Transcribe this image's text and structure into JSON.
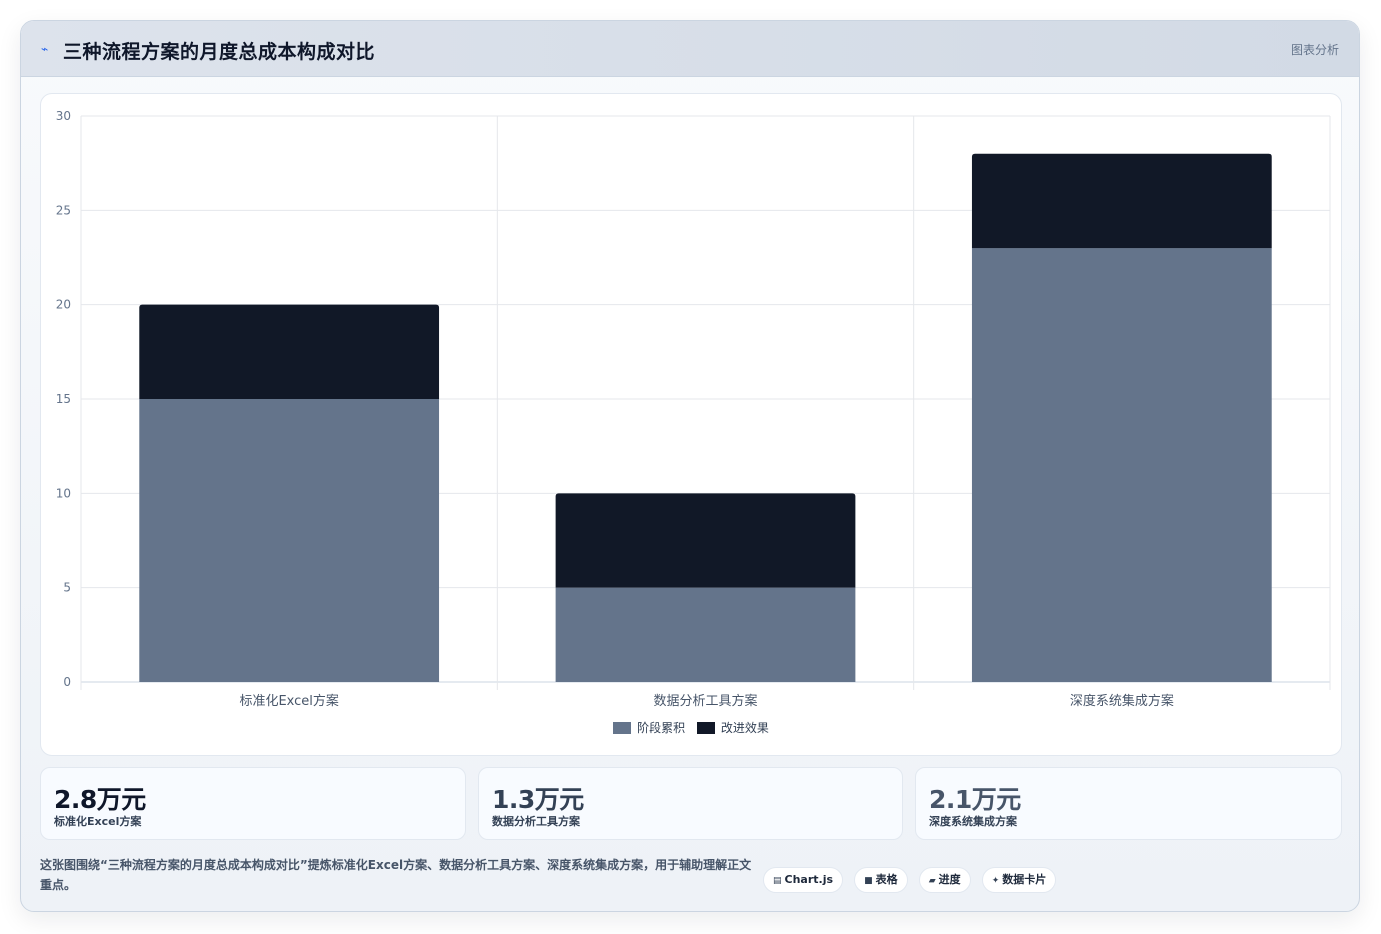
{
  "header": {
    "icon": "line-chart-icon",
    "title": "三种流程方案的月度总成本构成对比",
    "tag": "图表分析"
  },
  "chart_data": {
    "type": "bar",
    "stacked": true,
    "categories": [
      "标准化Excel方案",
      "数据分析工具方案",
      "深度系统集成方案"
    ],
    "series": [
      {
        "name": "阶段累积",
        "values": [
          15,
          5,
          23
        ],
        "color": "#64748b"
      },
      {
        "name": "改进效果",
        "values": [
          5,
          5,
          5
        ],
        "color": "#111827"
      }
    ],
    "ylim": [
      0,
      30
    ],
    "yticks": [
      "0",
      "5",
      "10",
      "15",
      "20",
      "25",
      "30"
    ],
    "grid": true,
    "legend": "bottom-center"
  },
  "stats": [
    {
      "value": "2.8万元",
      "label": "标准化Excel方案",
      "color": "#0f172a"
    },
    {
      "value": "1.3万元",
      "label": "数据分析工具方案",
      "color": "#334155"
    },
    {
      "value": "2.1万元",
      "label": "深度系统集成方案",
      "color": "#475569"
    }
  ],
  "footer": {
    "note": "这张图围绕“三种流程方案的月度总成本构成对比”提炼标准化Excel方案、数据分析工具方案、深度系统集成方案，用于辅助理解正文重点。"
  },
  "chips": [
    {
      "icon": "chart-icon",
      "glyph": "▤",
      "label": "Chart.js"
    },
    {
      "icon": "table-icon",
      "glyph": "■",
      "label": "表格"
    },
    {
      "icon": "progress-icon",
      "glyph": "▰",
      "label": "进度"
    },
    {
      "icon": "sparkle-icon",
      "glyph": "✦",
      "label": "数据卡片"
    }
  ]
}
